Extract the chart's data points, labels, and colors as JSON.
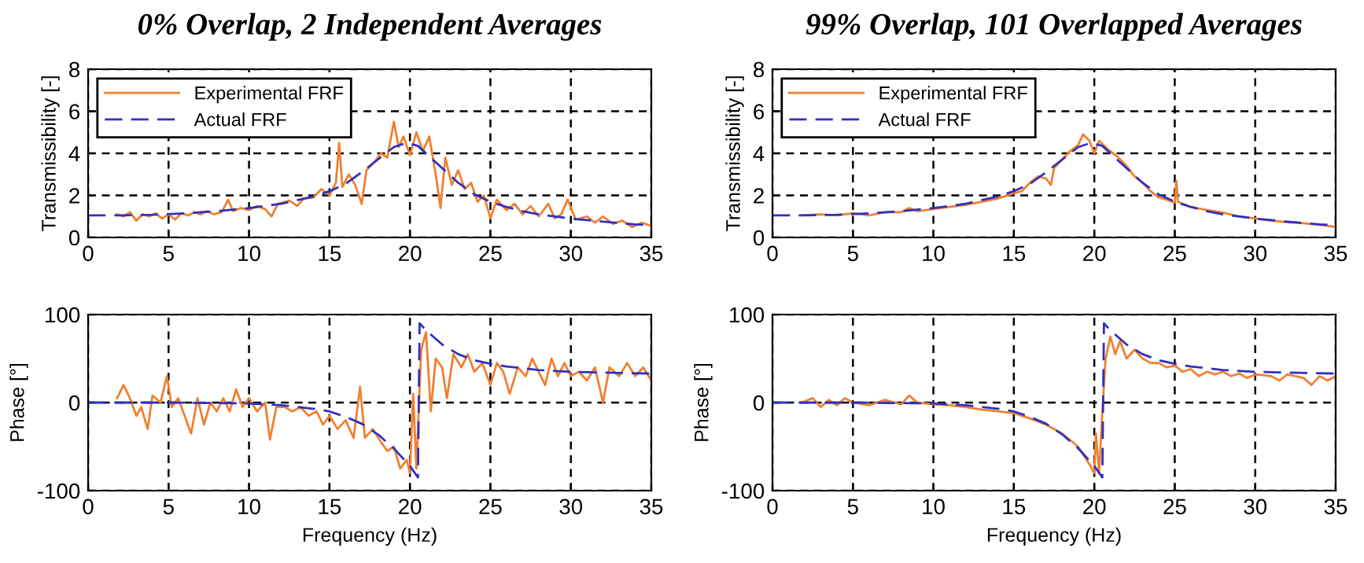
{
  "chart_data": [
    {
      "type": "line",
      "title": "0% Overlap, 2 Independent Averages",
      "ylabel": "Transmissibility [-]",
      "xlim": [
        0,
        35
      ],
      "xticks": [
        0,
        5,
        10,
        15,
        20,
        25,
        30,
        35
      ],
      "ylim": [
        0,
        8
      ],
      "yticks": [
        0,
        2,
        4,
        6,
        8
      ],
      "grid": true,
      "legend": "top left",
      "series": [
        {
          "name": "Experimental FRF",
          "color": "#f08030",
          "line_style": "solid",
          "x": [
            1.8,
            2.2,
            2.6,
            3.0,
            3.4,
            3.8,
            4.2,
            4.6,
            5.0,
            5.4,
            5.8,
            6.2,
            6.6,
            7.0,
            7.4,
            7.8,
            8.3,
            8.7,
            9.0,
            9.5,
            10.0,
            10.5,
            11.0,
            11.4,
            11.8,
            12.5,
            13.0,
            13.4,
            14.0,
            14.5,
            15.0,
            15.4,
            15.6,
            15.8,
            16.2,
            16.6,
            17.0,
            17.3,
            17.8,
            18.2,
            18.6,
            19.0,
            19.3,
            19.6,
            20.0,
            20.4,
            20.8,
            21.2,
            21.6,
            21.9,
            22.2,
            22.6,
            23.0,
            23.4,
            23.8,
            24.2,
            24.6,
            25.0,
            25.4,
            26.0,
            26.5,
            27.0,
            27.5,
            28.0,
            28.6,
            29.0,
            29.4,
            29.8,
            30.3,
            31.0,
            31.5,
            32.0,
            32.6,
            33.2,
            33.8,
            34.4,
            35.0
          ],
          "values": [
            1.1,
            1.0,
            1.2,
            0.8,
            1.1,
            1.0,
            1.15,
            0.9,
            1.1,
            0.85,
            1.15,
            1.05,
            1.2,
            1.1,
            1.25,
            1.1,
            1.2,
            1.8,
            1.25,
            1.4,
            1.3,
            1.5,
            1.35,
            1.0,
            1.6,
            1.75,
            1.5,
            1.85,
            1.9,
            2.3,
            2.0,
            2.6,
            4.5,
            2.4,
            3.0,
            2.5,
            1.6,
            3.2,
            3.6,
            4.0,
            3.8,
            5.5,
            4.3,
            4.8,
            3.9,
            5.0,
            4.1,
            4.8,
            3.0,
            1.4,
            3.8,
            2.5,
            3.2,
            2.3,
            2.6,
            1.7,
            2.0,
            0.9,
            1.8,
            1.3,
            1.6,
            1.1,
            1.5,
            1.0,
            1.6,
            0.9,
            1.1,
            1.8,
            0.85,
            1.0,
            0.7,
            1.0,
            0.65,
            0.8,
            0.5,
            0.7,
            0.55
          ]
        },
        {
          "name": "Actual FRF",
          "color": "#3030c0",
          "line_style": "dashed",
          "x": [
            0,
            2,
            4,
            6,
            8,
            10,
            12,
            14,
            15,
            16,
            17,
            18,
            19,
            19.8,
            20.5,
            21,
            22,
            23,
            24,
            25,
            26,
            27,
            28,
            30,
            32,
            34,
            35
          ],
          "values": [
            1.05,
            1.05,
            1.08,
            1.15,
            1.25,
            1.4,
            1.6,
            1.95,
            2.2,
            2.55,
            3.1,
            3.7,
            4.3,
            4.5,
            4.35,
            4.0,
            3.3,
            2.6,
            2.05,
            1.7,
            1.45,
            1.25,
            1.1,
            0.9,
            0.75,
            0.62,
            0.58
          ]
        }
      ]
    },
    {
      "type": "line",
      "title": "99% Overlap, 101 Overlapped Averages",
      "ylabel": "Transmissibility [-]",
      "xlim": [
        0,
        35
      ],
      "xticks": [
        0,
        5,
        10,
        15,
        20,
        25,
        30,
        35
      ],
      "ylim": [
        0,
        8
      ],
      "yticks": [
        0,
        2,
        4,
        6,
        8
      ],
      "grid": true,
      "legend": "top left",
      "series": [
        {
          "name": "Experimental FRF",
          "color": "#f08030",
          "line_style": "solid",
          "x": [
            1.8,
            3,
            4,
            5,
            6,
            7,
            8,
            8.5,
            9,
            10,
            11,
            12,
            13,
            14,
            15,
            15.5,
            16,
            16.5,
            17,
            17.3,
            17.5,
            18,
            18.5,
            19,
            19.3,
            19.7,
            20,
            20.3,
            20.7,
            21,
            21.5,
            22,
            22.5,
            23,
            23.5,
            24,
            24.5,
            25,
            25.1,
            25.2,
            26,
            27,
            28,
            29,
            30,
            31,
            32,
            33,
            34,
            35
          ],
          "values": [
            1.05,
            1.1,
            1.05,
            1.15,
            1.05,
            1.2,
            1.2,
            1.4,
            1.25,
            1.35,
            1.45,
            1.55,
            1.7,
            1.85,
            2.1,
            2.2,
            2.6,
            2.9,
            2.8,
            2.5,
            3.3,
            3.7,
            4.1,
            4.4,
            4.9,
            4.6,
            4.0,
            4.6,
            4.3,
            4.1,
            3.8,
            3.4,
            2.9,
            2.6,
            2.2,
            1.9,
            1.8,
            1.65,
            2.7,
            1.7,
            1.45,
            1.3,
            1.18,
            1.0,
            0.9,
            0.8,
            0.72,
            0.68,
            0.6,
            0.5
          ]
        },
        {
          "name": "Actual FRF",
          "color": "#3030c0",
          "line_style": "dashed",
          "x": [
            0,
            2,
            4,
            6,
            8,
            10,
            12,
            14,
            15,
            16,
            17,
            18,
            19,
            19.8,
            20.5,
            21,
            22,
            23,
            24,
            25,
            26,
            27,
            28,
            30,
            32,
            34,
            35
          ],
          "values": [
            1.05,
            1.05,
            1.08,
            1.15,
            1.25,
            1.4,
            1.6,
            1.95,
            2.2,
            2.55,
            3.1,
            3.7,
            4.3,
            4.5,
            4.35,
            4.0,
            3.3,
            2.6,
            2.05,
            1.7,
            1.45,
            1.25,
            1.1,
            0.9,
            0.75,
            0.62,
            0.58
          ]
        }
      ]
    },
    {
      "type": "line",
      "xlabel": "Frequency (Hz)",
      "ylabel": "Phase [°]",
      "xlim": [
        0,
        35
      ],
      "xticks": [
        0,
        5,
        10,
        15,
        20,
        25,
        30,
        35
      ],
      "ylim": [
        -100,
        100
      ],
      "yticks": [
        -100,
        0,
        100
      ],
      "grid": true,
      "series": [
        {
          "color": "#f08030",
          "line_style": "solid",
          "x": [
            1.8,
            2.2,
            2.6,
            3.0,
            3.3,
            3.7,
            4.0,
            4.5,
            4.9,
            5.2,
            5.6,
            6.0,
            6.4,
            6.8,
            7.2,
            7.6,
            8.0,
            8.4,
            8.8,
            9.2,
            9.6,
            10.0,
            10.5,
            11.0,
            11.3,
            11.7,
            12.2,
            12.7,
            13.2,
            13.7,
            14.2,
            14.6,
            15.0,
            15.5,
            16.0,
            16.5,
            16.9,
            17.2,
            17.7,
            18.2,
            18.6,
            19.0,
            19.4,
            19.8,
            20.0,
            20.2,
            20.4,
            20.7,
            21.0,
            21.3,
            21.6,
            22.0,
            22.3,
            22.7,
            23.2,
            23.6,
            24.0,
            24.5,
            25.0,
            25.4,
            25.8,
            26.2,
            26.7,
            27.2,
            27.6,
            28.0,
            28.4,
            28.8,
            29.2,
            29.6,
            30.0,
            30.5,
            31.0,
            31.5,
            32.0,
            32.4,
            33.0,
            33.5,
            34.0,
            34.5,
            35.0
          ],
          "values": [
            5,
            20,
            5,
            -15,
            -5,
            -30,
            8,
            0,
            30,
            -5,
            5,
            -15,
            -35,
            5,
            -25,
            0,
            -10,
            5,
            -10,
            15,
            -5,
            5,
            -10,
            0,
            -42,
            -5,
            -5,
            -10,
            -5,
            -15,
            -10,
            -25,
            -15,
            -30,
            -20,
            -40,
            18,
            -40,
            -30,
            -45,
            -55,
            -50,
            -75,
            -65,
            -80,
            10,
            -75,
            60,
            80,
            -10,
            50,
            40,
            5,
            55,
            40,
            55,
            35,
            45,
            20,
            45,
            35,
            10,
            40,
            30,
            50,
            35,
            20,
            50,
            30,
            45,
            30,
            35,
            25,
            40,
            0,
            40,
            30,
            45,
            30,
            40,
            25
          ]
        },
        {
          "color": "#3030c0",
          "line_style": "dashed",
          "x": [
            0,
            5,
            10,
            12,
            14,
            15,
            16,
            17,
            18,
            19,
            20,
            20.5,
            20.6,
            21,
            22,
            23,
            24,
            25,
            26,
            28,
            30,
            32,
            35
          ],
          "values": [
            0,
            0,
            -1,
            -3,
            -7,
            -10,
            -16,
            -24,
            -36,
            -52,
            -72,
            -85,
            90,
            82,
            66,
            55,
            48,
            44,
            41,
            37,
            35,
            34,
            33
          ]
        }
      ]
    },
    {
      "type": "line",
      "xlabel": "Frequency (Hz)",
      "ylabel": "Phase [°]",
      "xlim": [
        0,
        35
      ],
      "xticks": [
        0,
        5,
        10,
        15,
        20,
        25,
        30,
        35
      ],
      "ylim": [
        -100,
        100
      ],
      "yticks": [
        -100,
        0,
        100
      ],
      "grid": true,
      "series": [
        {
          "color": "#f08030",
          "line_style": "solid",
          "x": [
            1.8,
            2.5,
            3,
            3.5,
            4,
            4.5,
            5,
            6,
            7,
            8,
            8.5,
            9,
            10,
            11,
            12,
            13,
            14,
            15,
            16,
            17,
            18,
            19,
            19.7,
            20,
            20.1,
            20.3,
            20.5,
            20.7,
            21,
            21.3,
            21.6,
            22,
            22.5,
            23,
            23.5,
            24,
            24.5,
            25,
            25.5,
            26,
            26.5,
            27,
            27.5,
            28,
            28.5,
            29,
            29.5,
            30,
            31,
            31.5,
            32,
            33,
            33.5,
            34,
            34.5,
            35
          ],
          "values": [
            0,
            5,
            -5,
            3,
            -3,
            5,
            0,
            -3,
            3,
            -2,
            8,
            0,
            -2,
            -3,
            -5,
            -8,
            -10,
            -12,
            -18,
            -25,
            -35,
            -50,
            -70,
            -80,
            -35,
            -80,
            -10,
            50,
            75,
            55,
            70,
            50,
            60,
            50,
            45,
            45,
            40,
            42,
            35,
            38,
            30,
            35,
            32,
            35,
            30,
            33,
            28,
            32,
            30,
            25,
            32,
            28,
            20,
            30,
            25,
            30
          ]
        },
        {
          "color": "#3030c0",
          "line_style": "dashed",
          "x": [
            0,
            5,
            10,
            12,
            14,
            15,
            16,
            17,
            18,
            19,
            20,
            20.5,
            20.6,
            21,
            22,
            23,
            24,
            25,
            26,
            28,
            30,
            32,
            35
          ],
          "values": [
            0,
            0,
            -1,
            -3,
            -7,
            -10,
            -16,
            -24,
            -36,
            -52,
            -72,
            -85,
            90,
            82,
            66,
            55,
            48,
            44,
            41,
            37,
            35,
            34,
            33
          ]
        }
      ]
    }
  ]
}
